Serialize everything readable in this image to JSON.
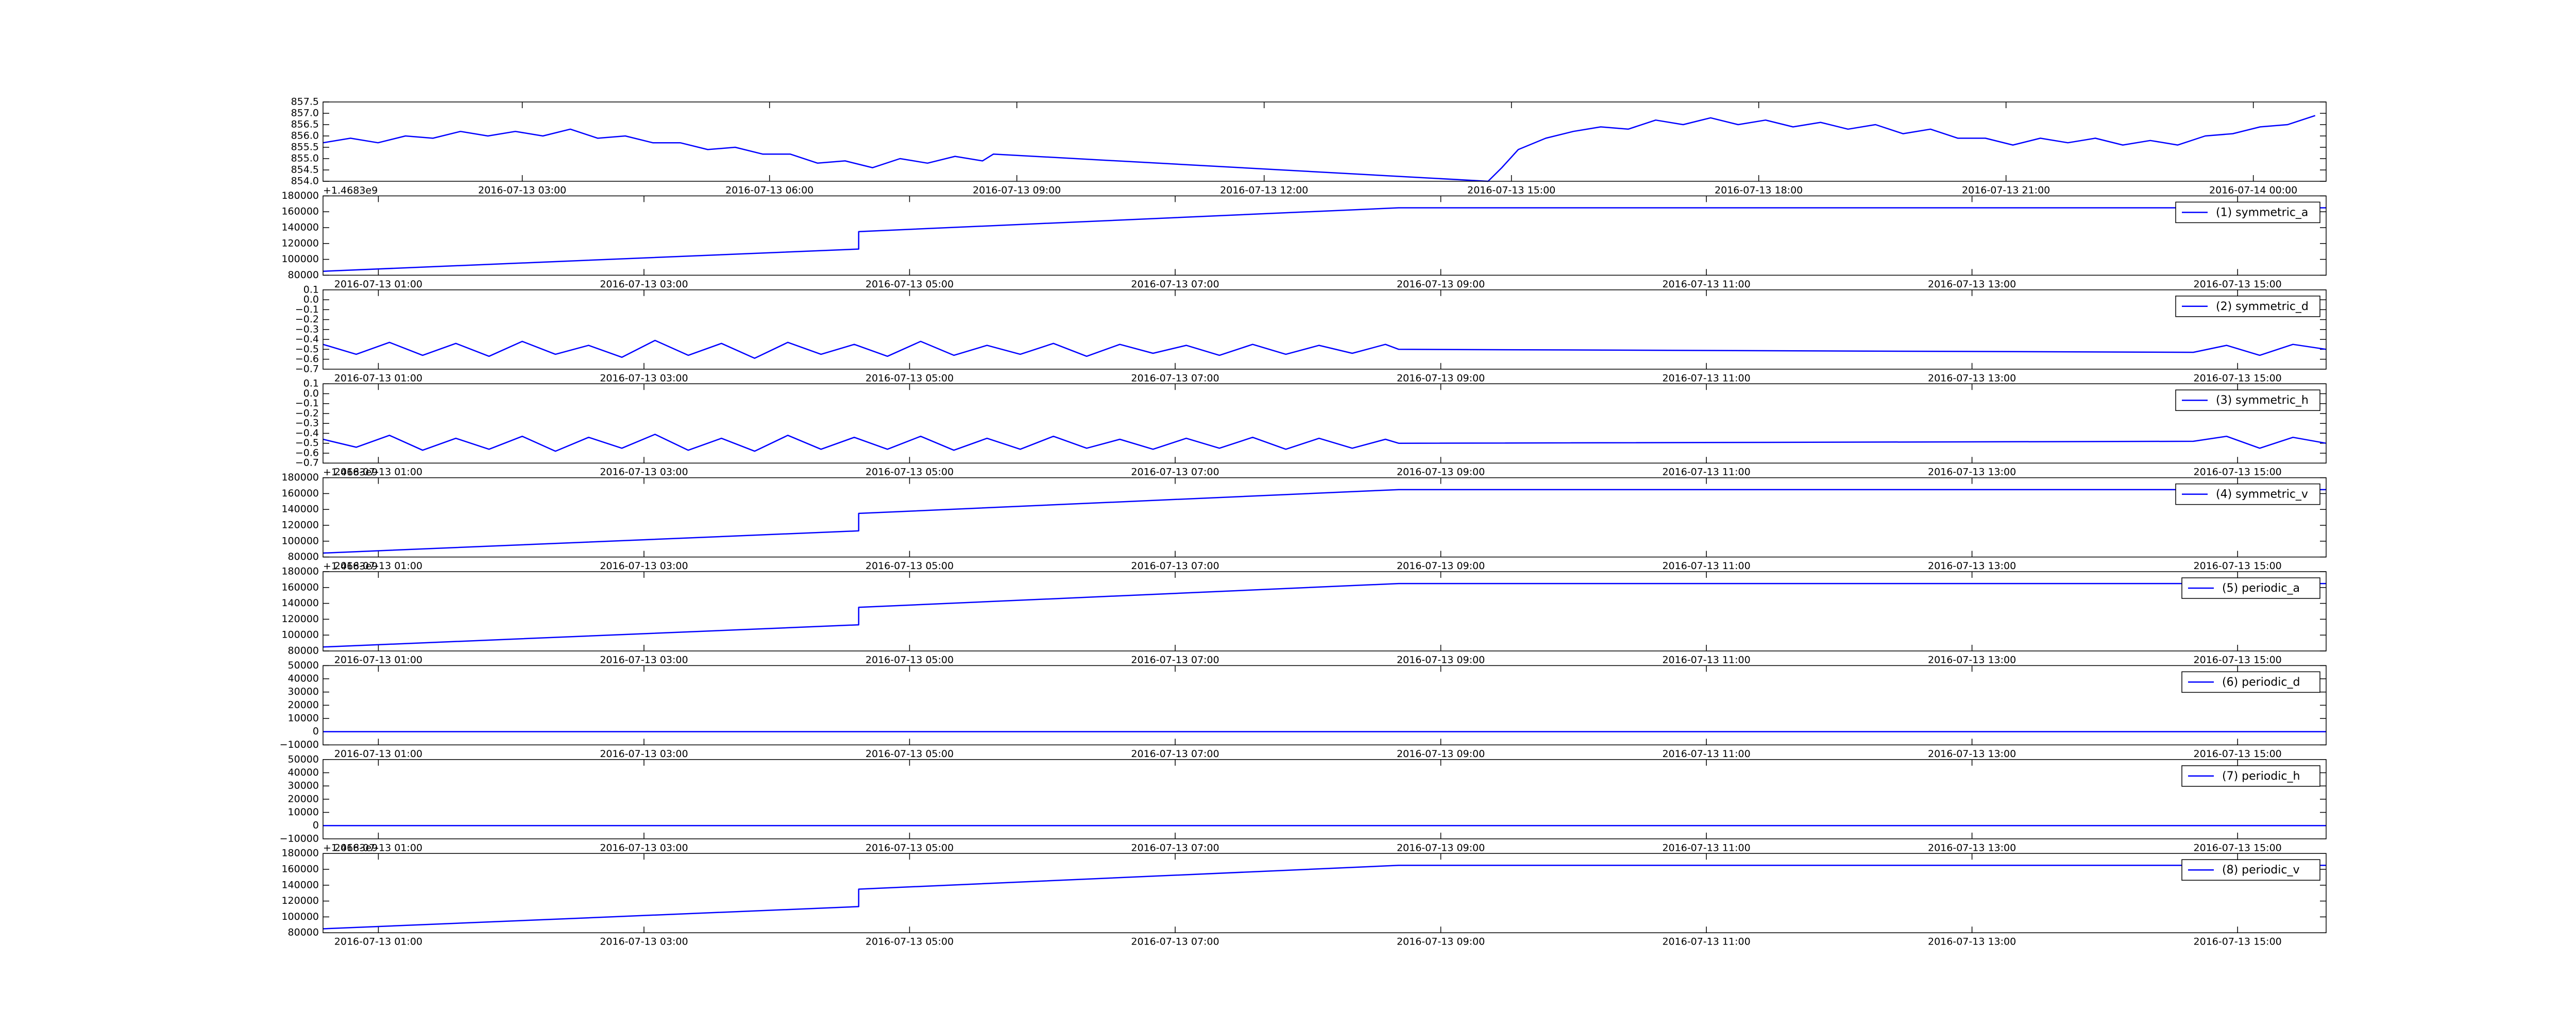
{
  "chart_data": [
    {
      "type": "line",
      "x": [
        "2016-07-13 00:35",
        "2016-07-13 00:55",
        "2016-07-13 01:15",
        "2016-07-13 01:35",
        "2016-07-13 01:55",
        "2016-07-13 02:15",
        "2016-07-13 02:35",
        "2016-07-13 02:55",
        "2016-07-13 03:15",
        "2016-07-13 03:35",
        "2016-07-13 03:55",
        "2016-07-13 04:15",
        "2016-07-13 04:35",
        "2016-07-13 04:55",
        "2016-07-13 05:15",
        "2016-07-13 05:35",
        "2016-07-13 05:55",
        "2016-07-13 06:15",
        "2016-07-13 06:35",
        "2016-07-13 06:55",
        "2016-07-13 07:15",
        "2016-07-13 07:35",
        "2016-07-13 07:55",
        "2016-07-13 08:15",
        "2016-07-13 08:35",
        "2016-07-13 08:43",
        "2016-07-13 14:43",
        "2016-07-13 14:53",
        "2016-07-13 15:05",
        "2016-07-13 15:25",
        "2016-07-13 15:45",
        "2016-07-13 16:05",
        "2016-07-13 16:25",
        "2016-07-13 16:45",
        "2016-07-13 17:05",
        "2016-07-13 17:25",
        "2016-07-13 17:45",
        "2016-07-13 18:05",
        "2016-07-13 18:25",
        "2016-07-13 18:45",
        "2016-07-13 19:05",
        "2016-07-13 19:25",
        "2016-07-13 19:45",
        "2016-07-13 20:05",
        "2016-07-13 20:25",
        "2016-07-13 20:45",
        "2016-07-13 21:05",
        "2016-07-13 21:25",
        "2016-07-13 21:45",
        "2016-07-13 22:05",
        "2016-07-13 22:25",
        "2016-07-13 22:45",
        "2016-07-13 23:05",
        "2016-07-13 23:25",
        "2016-07-13 23:45",
        "2016-07-14 00:05",
        "2016-07-14 00:25",
        "2016-07-14 00:45"
      ],
      "series": [
        {
          "color": "#0000ff",
          "values": [
            855.7,
            855.9,
            855.7,
            856.0,
            855.9,
            856.2,
            856.0,
            856.2,
            856.0,
            856.3,
            855.9,
            856.0,
            855.7,
            855.7,
            855.4,
            855.5,
            855.2,
            855.2,
            854.8,
            854.9,
            854.6,
            855.0,
            854.8,
            855.1,
            854.9,
            855.2,
            854.0,
            854.6,
            855.4,
            855.9,
            856.2,
            856.4,
            856.3,
            856.7,
            856.5,
            856.8,
            856.5,
            856.7,
            856.4,
            856.6,
            856.3,
            856.5,
            856.1,
            856.3,
            855.9,
            855.9,
            855.6,
            855.9,
            855.7,
            855.9,
            855.6,
            855.8,
            855.6,
            856.0,
            856.1,
            856.4,
            856.5,
            856.9
          ]
        }
      ],
      "xlim": [
        "2016-07-13 00:35",
        "2016-07-14 00:53"
      ],
      "xticks": [
        "2016-07-13 03:00",
        "2016-07-13 06:00",
        "2016-07-13 09:00",
        "2016-07-13 12:00",
        "2016-07-13 15:00",
        "2016-07-13 18:00",
        "2016-07-13 21:00",
        "2016-07-14 00:00"
      ],
      "ylim": [
        854.0,
        857.5
      ],
      "yticks": [
        {
          "value": 854,
          "label": "854.0"
        },
        854.5,
        {
          "value": 855,
          "label": "855.0"
        },
        855.5,
        {
          "value": 856,
          "label": "856.0"
        },
        856.5,
        {
          "value": 857,
          "label": "857.0"
        },
        857.5
      ]
    },
    {
      "type": "line",
      "x": [
        "2016-07-13 00:35",
        "2016-07-13 04:37",
        "2016-07-13 04:37",
        "2016-07-13 08:41",
        "2016-07-13 15:40"
      ],
      "series": [
        {
          "name": "(1) symmetric_a",
          "color": "#0000ff",
          "values": [
            85000,
            113000,
            135000,
            165000,
            165000
          ]
        }
      ],
      "xlim": [
        "2016-07-13 00:35",
        "2016-07-13 15:40"
      ],
      "xticks": [
        "2016-07-13 01:00",
        "2016-07-13 03:00",
        "2016-07-13 05:00",
        "2016-07-13 07:00",
        "2016-07-13 09:00",
        "2016-07-13 11:00",
        "2016-07-13 13:00",
        "2016-07-13 15:00"
      ],
      "ylim": [
        80000,
        180000
      ],
      "yticks": [
        80000,
        100000,
        120000,
        140000,
        160000,
        180000
      ],
      "offset_text": "+1.4683e9",
      "legend": "upper right"
    },
    {
      "type": "line",
      "x": [
        "2016-07-13 00:35",
        "2016-07-13 00:50",
        "2016-07-13 01:05",
        "2016-07-13 01:20",
        "2016-07-13 01:35",
        "2016-07-13 01:50",
        "2016-07-13 02:05",
        "2016-07-13 02:20",
        "2016-07-13 02:35",
        "2016-07-13 02:50",
        "2016-07-13 03:05",
        "2016-07-13 03:20",
        "2016-07-13 03:35",
        "2016-07-13 03:50",
        "2016-07-13 04:05",
        "2016-07-13 04:20",
        "2016-07-13 04:35",
        "2016-07-13 04:50",
        "2016-07-13 05:05",
        "2016-07-13 05:20",
        "2016-07-13 05:35",
        "2016-07-13 05:50",
        "2016-07-13 06:05",
        "2016-07-13 06:20",
        "2016-07-13 06:35",
        "2016-07-13 06:50",
        "2016-07-13 07:05",
        "2016-07-13 07:20",
        "2016-07-13 07:35",
        "2016-07-13 07:50",
        "2016-07-13 08:05",
        "2016-07-13 08:20",
        "2016-07-13 08:35",
        "2016-07-13 08:41",
        "2016-07-13 14:40",
        "2016-07-13 14:55",
        "2016-07-13 15:10",
        "2016-07-13 15:25",
        "2016-07-13 15:40"
      ],
      "series": [
        {
          "name": "(2) symmetric_d",
          "color": "#0000ff",
          "values": [
            -0.45,
            -0.55,
            -0.43,
            -0.56,
            -0.44,
            -0.57,
            -0.42,
            -0.55,
            -0.46,
            -0.58,
            -0.41,
            -0.56,
            -0.44,
            -0.59,
            -0.43,
            -0.55,
            -0.45,
            -0.57,
            -0.42,
            -0.56,
            -0.46,
            -0.55,
            -0.44,
            -0.57,
            -0.45,
            -0.54,
            -0.46,
            -0.56,
            -0.45,
            -0.55,
            -0.46,
            -0.54,
            -0.45,
            -0.5,
            -0.53,
            -0.46,
            -0.56,
            -0.45,
            -0.5
          ]
        }
      ],
      "xlim": [
        "2016-07-13 00:35",
        "2016-07-13 15:40"
      ],
      "xticks": [
        "2016-07-13 01:00",
        "2016-07-13 03:00",
        "2016-07-13 05:00",
        "2016-07-13 07:00",
        "2016-07-13 09:00",
        "2016-07-13 11:00",
        "2016-07-13 13:00",
        "2016-07-13 15:00"
      ],
      "ylim": [
        -0.7,
        0.1
      ],
      "yticks": [
        {
          "value": -0.7,
          "label": "−0.7"
        },
        {
          "value": -0.6,
          "label": "−0.6"
        },
        {
          "value": -0.5,
          "label": "−0.5"
        },
        {
          "value": -0.4,
          "label": "−0.4"
        },
        {
          "value": -0.3,
          "label": "−0.3"
        },
        {
          "value": -0.2,
          "label": "−0.2"
        },
        {
          "value": -0.1,
          "label": "−0.1"
        },
        {
          "value": 0,
          "label": "0.0"
        },
        0.1
      ],
      "legend": "upper right"
    },
    {
      "type": "line",
      "x": [
        "2016-07-13 00:35",
        "2016-07-13 00:50",
        "2016-07-13 01:05",
        "2016-07-13 01:20",
        "2016-07-13 01:35",
        "2016-07-13 01:50",
        "2016-07-13 02:05",
        "2016-07-13 02:20",
        "2016-07-13 02:35",
        "2016-07-13 02:50",
        "2016-07-13 03:05",
        "2016-07-13 03:20",
        "2016-07-13 03:35",
        "2016-07-13 03:50",
        "2016-07-13 04:05",
        "2016-07-13 04:20",
        "2016-07-13 04:35",
        "2016-07-13 04:50",
        "2016-07-13 05:05",
        "2016-07-13 05:20",
        "2016-07-13 05:35",
        "2016-07-13 05:50",
        "2016-07-13 06:05",
        "2016-07-13 06:20",
        "2016-07-13 06:35",
        "2016-07-13 06:50",
        "2016-07-13 07:05",
        "2016-07-13 07:20",
        "2016-07-13 07:35",
        "2016-07-13 07:50",
        "2016-07-13 08:05",
        "2016-07-13 08:20",
        "2016-07-13 08:35",
        "2016-07-13 08:41",
        "2016-07-13 14:40",
        "2016-07-13 14:55",
        "2016-07-13 15:10",
        "2016-07-13 15:25",
        "2016-07-13 15:40"
      ],
      "series": [
        {
          "name": "(3) symmetric_h",
          "color": "#0000ff",
          "values": [
            -0.46,
            -0.54,
            -0.42,
            -0.57,
            -0.45,
            -0.56,
            -0.43,
            -0.58,
            -0.44,
            -0.55,
            -0.41,
            -0.57,
            -0.45,
            -0.58,
            -0.42,
            -0.56,
            -0.44,
            -0.56,
            -0.43,
            -0.57,
            -0.45,
            -0.56,
            -0.43,
            -0.55,
            -0.46,
            -0.56,
            -0.45,
            -0.55,
            -0.44,
            -0.56,
            -0.45,
            -0.55,
            -0.46,
            -0.5,
            -0.48,
            -0.43,
            -0.55,
            -0.44,
            -0.5
          ]
        }
      ],
      "xlim": [
        "2016-07-13 00:35",
        "2016-07-13 15:40"
      ],
      "xticks": [
        "2016-07-13 01:00",
        "2016-07-13 03:00",
        "2016-07-13 05:00",
        "2016-07-13 07:00",
        "2016-07-13 09:00",
        "2016-07-13 11:00",
        "2016-07-13 13:00",
        "2016-07-13 15:00"
      ],
      "ylim": [
        -0.7,
        0.1
      ],
      "yticks": [
        {
          "value": -0.7,
          "label": "−0.7"
        },
        {
          "value": -0.6,
          "label": "−0.6"
        },
        {
          "value": -0.5,
          "label": "−0.5"
        },
        {
          "value": -0.4,
          "label": "−0.4"
        },
        {
          "value": -0.3,
          "label": "−0.3"
        },
        {
          "value": -0.2,
          "label": "−0.2"
        },
        {
          "value": -0.1,
          "label": "−0.1"
        },
        {
          "value": 0,
          "label": "0.0"
        },
        0.1
      ],
      "legend": "upper right"
    },
    {
      "type": "line",
      "x": [
        "2016-07-13 00:35",
        "2016-07-13 04:37",
        "2016-07-13 04:37",
        "2016-07-13 08:41",
        "2016-07-13 15:40"
      ],
      "series": [
        {
          "name": "(4) symmetric_v",
          "color": "#0000ff",
          "values": [
            85000,
            113000,
            135000,
            165000,
            165000
          ]
        }
      ],
      "xlim": [
        "2016-07-13 00:35",
        "2016-07-13 15:40"
      ],
      "xticks": [
        "2016-07-13 01:00",
        "2016-07-13 03:00",
        "2016-07-13 05:00",
        "2016-07-13 07:00",
        "2016-07-13 09:00",
        "2016-07-13 11:00",
        "2016-07-13 13:00",
        "2016-07-13 15:00"
      ],
      "ylim": [
        80000,
        180000
      ],
      "yticks": [
        80000,
        100000,
        120000,
        140000,
        160000,
        180000
      ],
      "offset_text": "+1.4683e9",
      "legend": "upper right"
    },
    {
      "type": "line",
      "x": [
        "2016-07-13 00:35",
        "2016-07-13 04:37",
        "2016-07-13 04:37",
        "2016-07-13 08:41",
        "2016-07-13 15:40"
      ],
      "series": [
        {
          "name": "(5) periodic_a",
          "color": "#0000ff",
          "values": [
            85000,
            113000,
            135000,
            165000,
            165000
          ]
        }
      ],
      "xlim": [
        "2016-07-13 00:35",
        "2016-07-13 15:40"
      ],
      "xticks": [
        "2016-07-13 01:00",
        "2016-07-13 03:00",
        "2016-07-13 05:00",
        "2016-07-13 07:00",
        "2016-07-13 09:00",
        "2016-07-13 11:00",
        "2016-07-13 13:00",
        "2016-07-13 15:00"
      ],
      "ylim": [
        80000,
        180000
      ],
      "yticks": [
        80000,
        100000,
        120000,
        140000,
        160000,
        180000
      ],
      "offset_text": "+1.4683e9",
      "legend": "upper right"
    },
    {
      "type": "line",
      "x": [
        "2016-07-13 00:35",
        "2016-07-13 15:40"
      ],
      "series": [
        {
          "name": "(6) periodic_d",
          "color": "#0000ff",
          "values": [
            0,
            0
          ]
        }
      ],
      "xlim": [
        "2016-07-13 00:35",
        "2016-07-13 15:40"
      ],
      "xticks": [
        "2016-07-13 01:00",
        "2016-07-13 03:00",
        "2016-07-13 05:00",
        "2016-07-13 07:00",
        "2016-07-13 09:00",
        "2016-07-13 11:00",
        "2016-07-13 13:00",
        "2016-07-13 15:00"
      ],
      "ylim": [
        -10000,
        50000
      ],
      "yticks": [
        {
          "value": -10000,
          "label": "−10000"
        },
        0,
        10000,
        20000,
        30000,
        40000,
        50000
      ],
      "legend": "upper right"
    },
    {
      "type": "line",
      "x": [
        "2016-07-13 00:35",
        "2016-07-13 15:40"
      ],
      "series": [
        {
          "name": "(7) periodic_h",
          "color": "#0000ff",
          "values": [
            0,
            0
          ]
        }
      ],
      "xlim": [
        "2016-07-13 00:35",
        "2016-07-13 15:40"
      ],
      "xticks": [
        "2016-07-13 01:00",
        "2016-07-13 03:00",
        "2016-07-13 05:00",
        "2016-07-13 07:00",
        "2016-07-13 09:00",
        "2016-07-13 11:00",
        "2016-07-13 13:00",
        "2016-07-13 15:00"
      ],
      "ylim": [
        -10000,
        50000
      ],
      "yticks": [
        {
          "value": -10000,
          "label": "−10000"
        },
        0,
        10000,
        20000,
        30000,
        40000,
        50000
      ],
      "legend": "upper right"
    },
    {
      "type": "line",
      "x": [
        "2016-07-13 00:35",
        "2016-07-13 04:37",
        "2016-07-13 04:37",
        "2016-07-13 08:41",
        "2016-07-13 15:40"
      ],
      "series": [
        {
          "name": "(8) periodic_v",
          "color": "#0000ff",
          "values": [
            85000,
            113000,
            135000,
            165000,
            165000
          ]
        }
      ],
      "xlim": [
        "2016-07-13 00:35",
        "2016-07-13 15:40"
      ],
      "xticks": [
        "2016-07-13 01:00",
        "2016-07-13 03:00",
        "2016-07-13 05:00",
        "2016-07-13 07:00",
        "2016-07-13 09:00",
        "2016-07-13 11:00",
        "2016-07-13 13:00",
        "2016-07-13 15:00"
      ],
      "ylim": [
        80000,
        180000
      ],
      "yticks": [
        80000,
        100000,
        120000,
        140000,
        160000,
        180000
      ],
      "offset_text": "+1.4683e9",
      "legend": "upper right"
    }
  ]
}
